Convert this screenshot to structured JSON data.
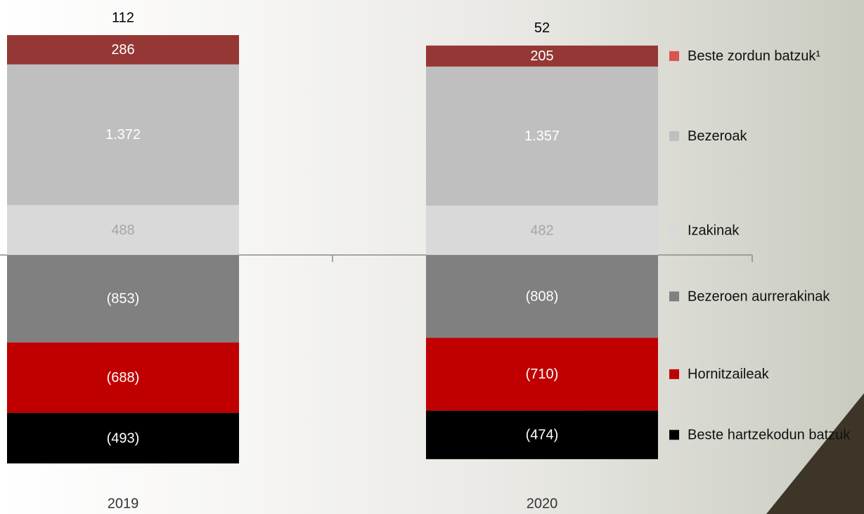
{
  "chart_data": {
    "type": "stacked-bar",
    "categories": [
      "2019",
      "2020"
    ],
    "totals": [
      112,
      52
    ],
    "series": [
      {
        "name": "Izakinak",
        "color": "#d9d9d9",
        "values": [
          488,
          482
        ]
      },
      {
        "name": "Bezeroak",
        "color": "#bfbfbf",
        "values": [
          1372,
          1357
        ],
        "value_labels": [
          "1.372",
          "1.357"
        ]
      },
      {
        "name": "Beste zordun batzuk¹",
        "color": "#953735",
        "values": [
          286,
          205
        ]
      },
      {
        "name": "Bezeroen aurrerakinak",
        "color": "#808080",
        "values": [
          -853,
          -808
        ],
        "value_labels": [
          "(853)",
          "(808)"
        ]
      },
      {
        "name": "Hornitzaileak",
        "color": "#c00000",
        "values": [
          -688,
          -710
        ],
        "value_labels": [
          "(688)",
          "(710)"
        ]
      },
      {
        "name": "Beste hartzekodun batzuk",
        "color": "#000000",
        "values": [
          -493,
          -474
        ],
        "value_labels": [
          "(493)",
          "(474)"
        ]
      }
    ]
  }
}
